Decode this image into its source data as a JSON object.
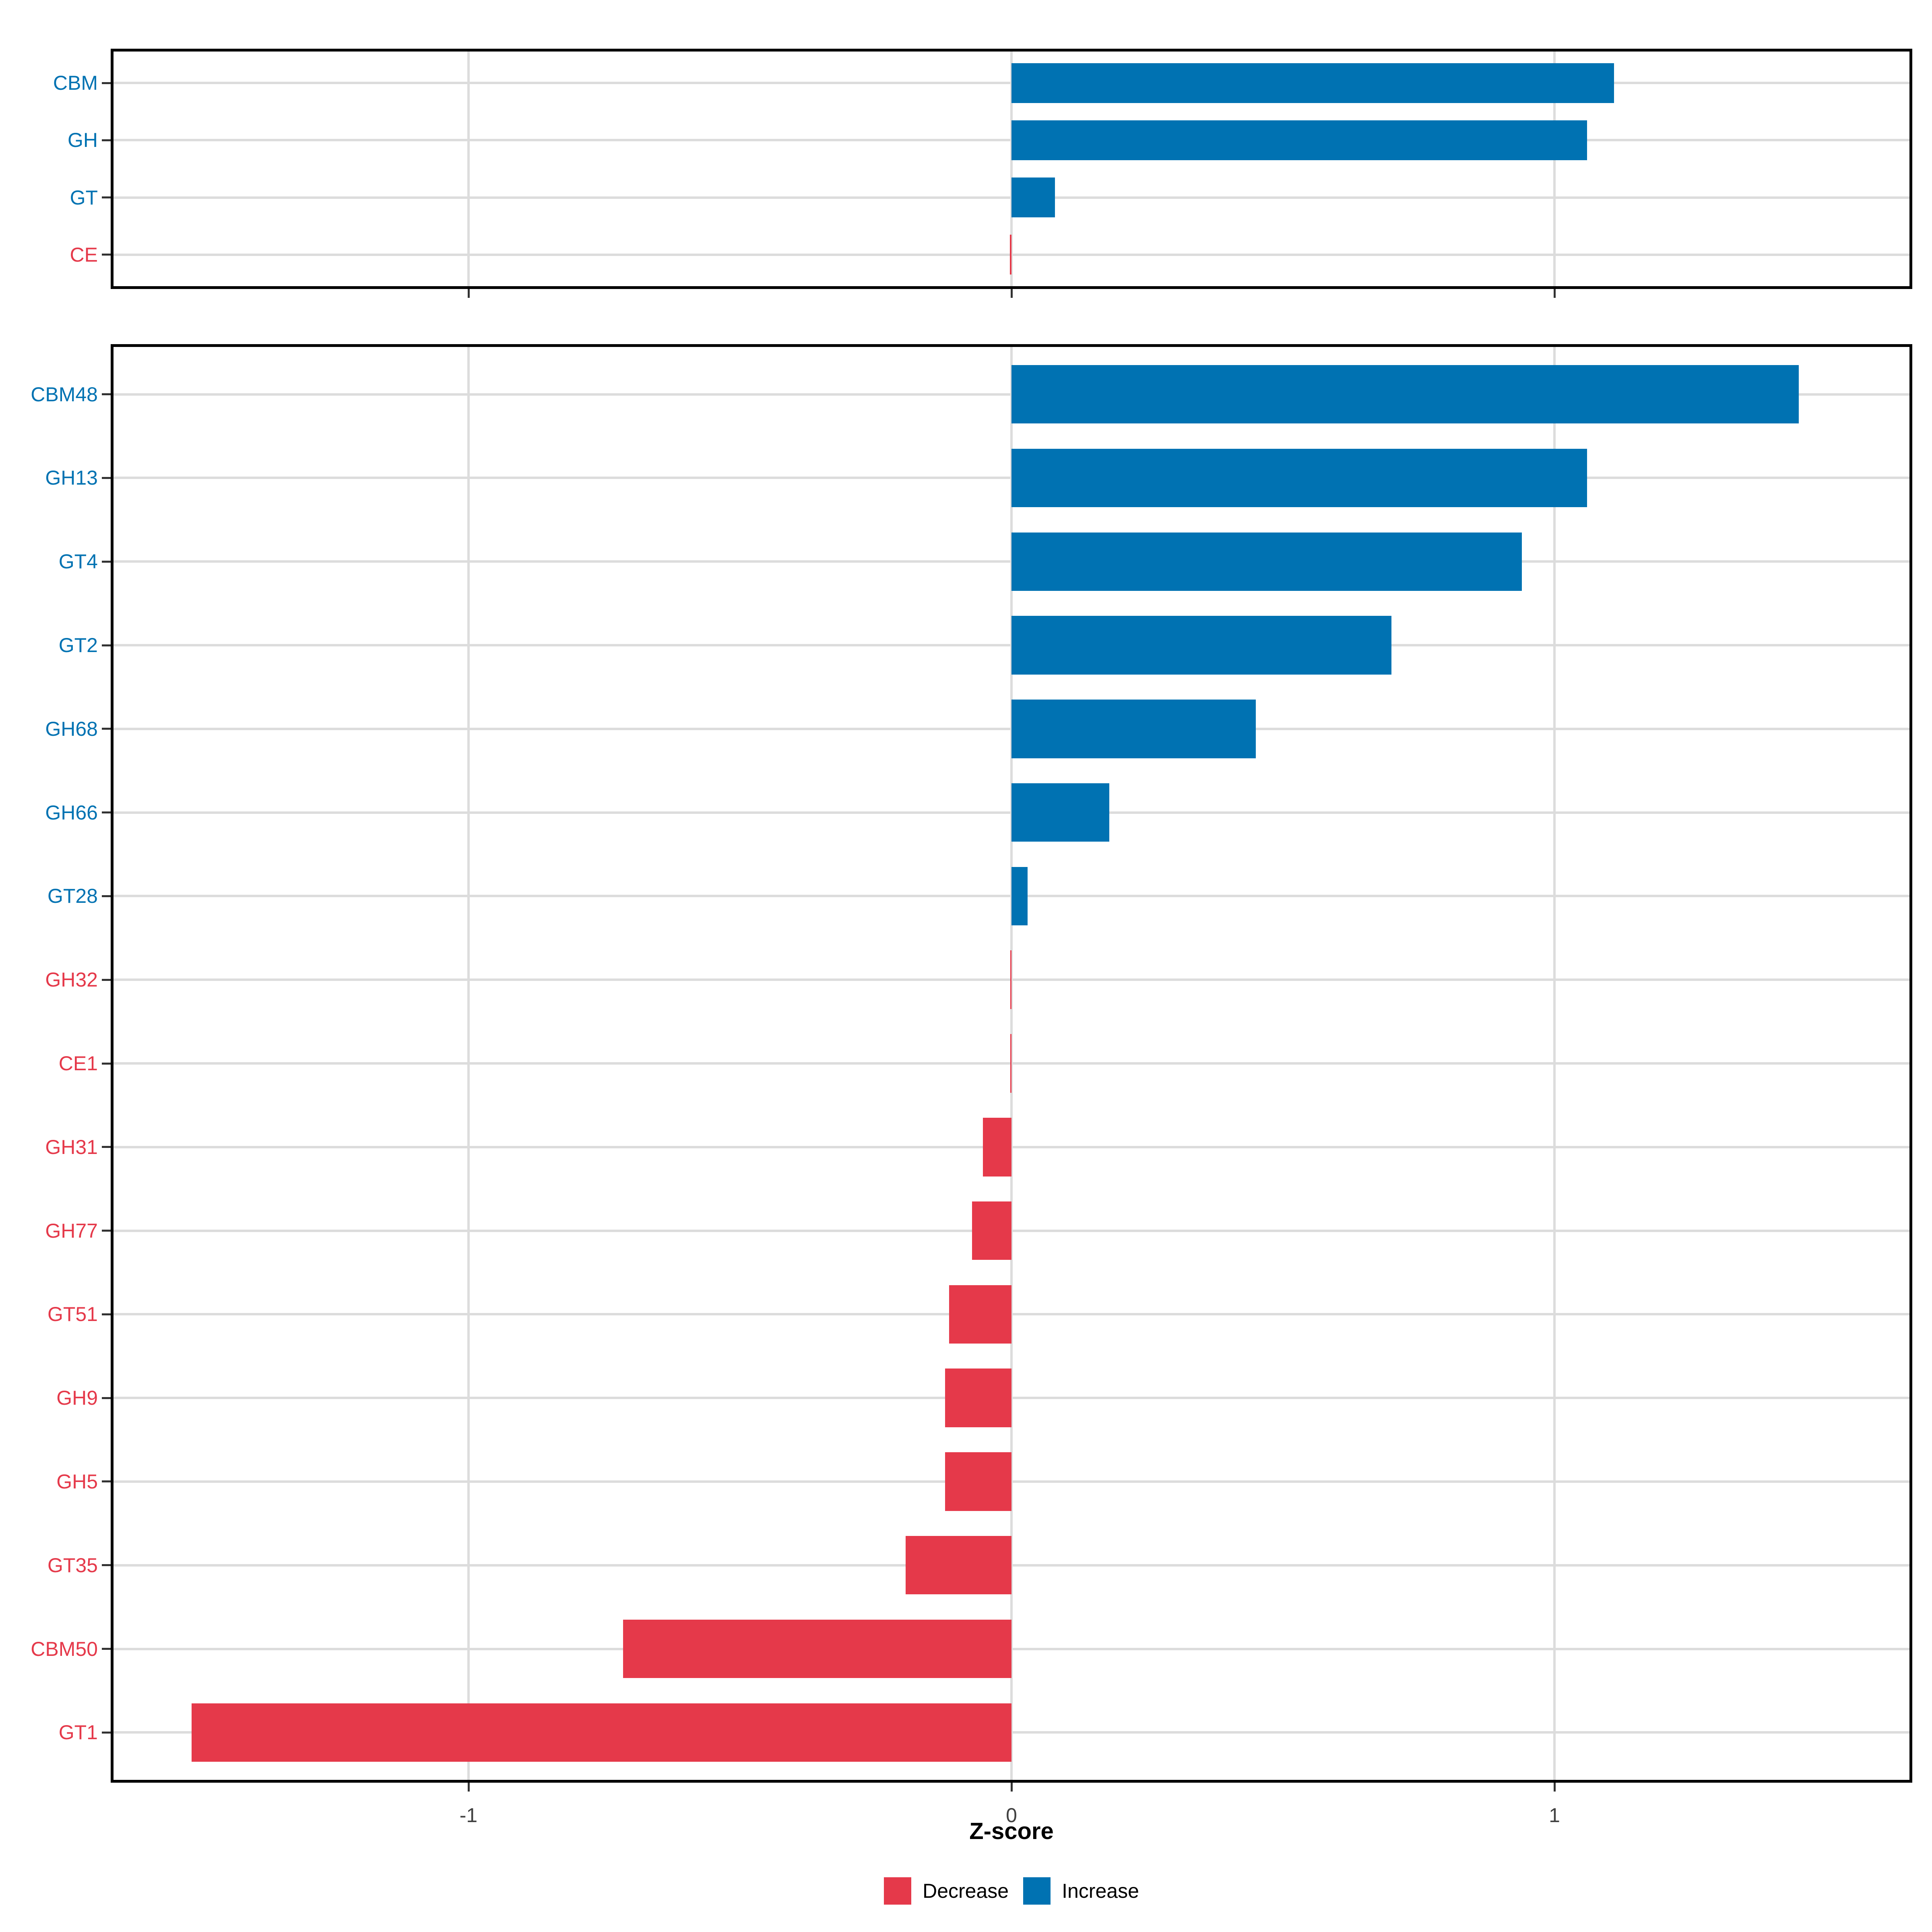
{
  "figure": {
    "xlabel": "Z-score",
    "x_tick_labels": [
      "-1",
      "0",
      "1"
    ],
    "x_tick_values": [
      -1,
      0,
      1
    ]
  },
  "legend": {
    "items": [
      {
        "label": "Decrease",
        "color": "#E5394A"
      },
      {
        "label": "Increase",
        "color": "#0072B2"
      }
    ]
  },
  "colors": {
    "increase": "#0072B2",
    "decrease": "#E5394A",
    "grid": "#DCDCDC",
    "panel_border": "#000000",
    "axis_text": "#404040"
  },
  "chart_data": [
    {
      "type": "bar",
      "orientation": "horizontal",
      "panel": "cazyme-class",
      "title": "",
      "xlabel": "Z-score",
      "xlim": [
        -1.66,
        1.66
      ],
      "grid": "on",
      "categories": [
        "CBM",
        "GH",
        "GT",
        "CE"
      ],
      "values": [
        1.11,
        1.06,
        0.08,
        -0.003
      ]
    },
    {
      "type": "bar",
      "orientation": "horizontal",
      "panel": "cazyme-family",
      "title": "",
      "xlabel": "Z-score",
      "xlim": [
        -1.66,
        1.66
      ],
      "grid": "on",
      "categories": [
        "CBM48",
        "GH13",
        "GT4",
        "GT2",
        "GH68",
        "GH66",
        "GT28",
        "GH32",
        "CE1",
        "GH31",
        "GH77",
        "GT51",
        "GH9",
        "GH5",
        "GT35",
        "CBM50",
        "GT1"
      ],
      "values": [
        1.45,
        1.06,
        0.94,
        0.7,
        0.45,
        0.18,
        0.03,
        -0.002,
        -0.002,
        -0.053,
        -0.073,
        -0.115,
        -0.122,
        -0.122,
        -0.195,
        -0.715,
        -1.51
      ]
    }
  ]
}
